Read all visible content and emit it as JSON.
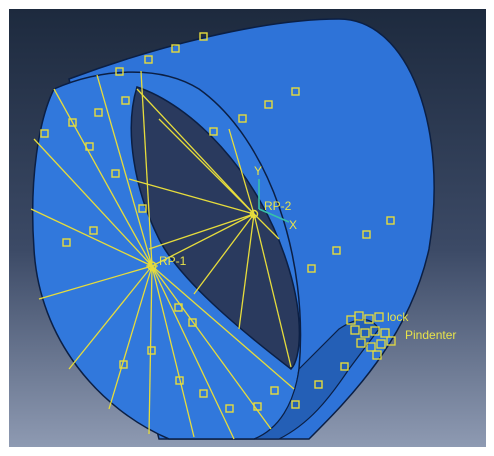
{
  "viewport": {
    "background_top": "#1d2a3e",
    "background_bottom": "#8e9ab2"
  },
  "model": {
    "part_color": "#2e73d8",
    "part_color_dark": "#1f5cb8",
    "edge_color": "#0b1f44",
    "wire_color": "#e6dc3c",
    "marker_color": "#e6dc3c"
  },
  "labels": {
    "rp1": "RP-1",
    "rp2": "RP-2",
    "axis_y": "Y",
    "axis_x": "X",
    "ref_lock": "lock",
    "ref_indenter": "Pindenter"
  }
}
